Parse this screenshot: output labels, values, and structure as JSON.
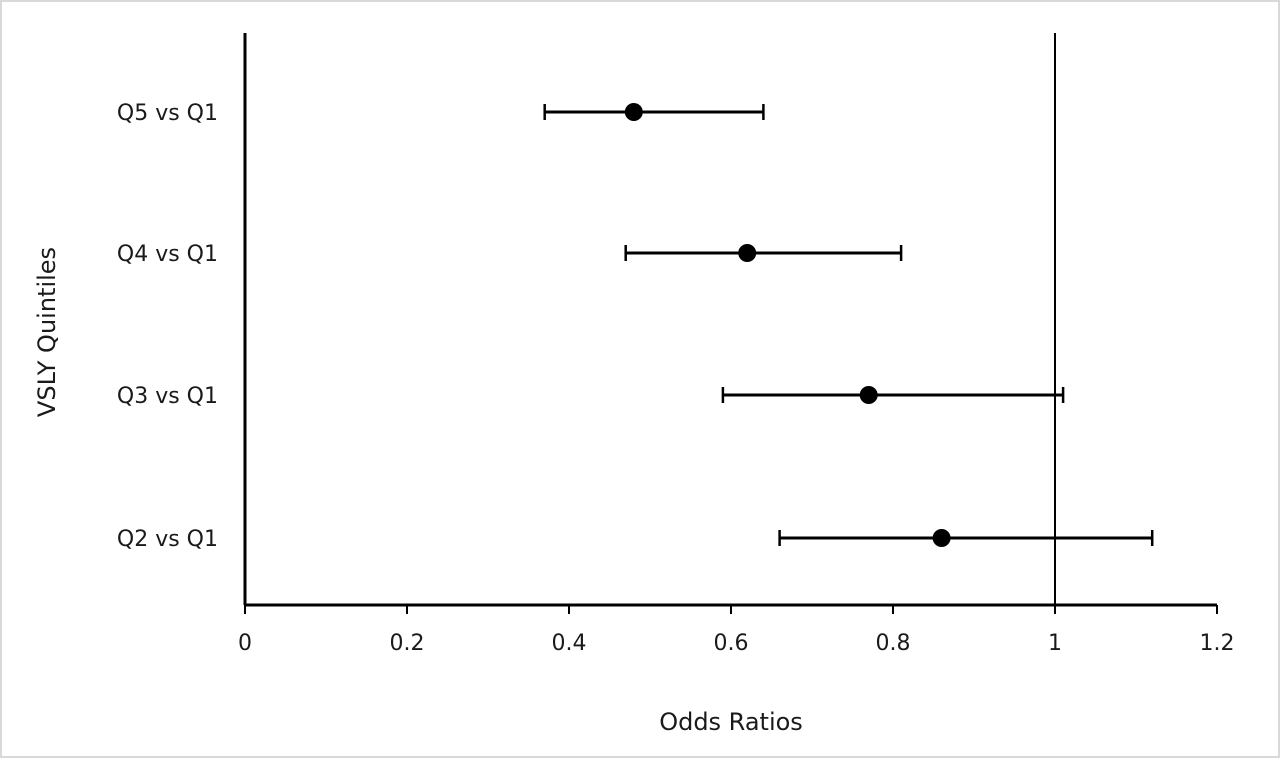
{
  "chart_data": {
    "type": "scatter",
    "subtype": "forest-plot",
    "title": "",
    "xlabel": "Odds Ratios",
    "ylabel": "VSLY Quintiles",
    "xlim": [
      0,
      1.2
    ],
    "x_ticks": [
      0,
      0.2,
      0.4,
      0.6,
      0.8,
      1,
      1.2
    ],
    "x_tick_labels": [
      "0",
      "0.2",
      "0.4",
      "0.6",
      "0.8",
      "1",
      "1.2"
    ],
    "reference_line": 1,
    "grid": false,
    "legend": "none",
    "marker_color": "#000000",
    "points": [
      {
        "label": "Q5 vs Q1",
        "estimate": 0.48,
        "lower": 0.37,
        "upper": 0.64
      },
      {
        "label": "Q4 vs Q1",
        "estimate": 0.62,
        "lower": 0.47,
        "upper": 0.81
      },
      {
        "label": "Q3 vs Q1",
        "estimate": 0.77,
        "lower": 0.59,
        "upper": 1.01
      },
      {
        "label": "Q2 vs Q1",
        "estimate": 0.86,
        "lower": 0.66,
        "upper": 1.12
      }
    ]
  }
}
